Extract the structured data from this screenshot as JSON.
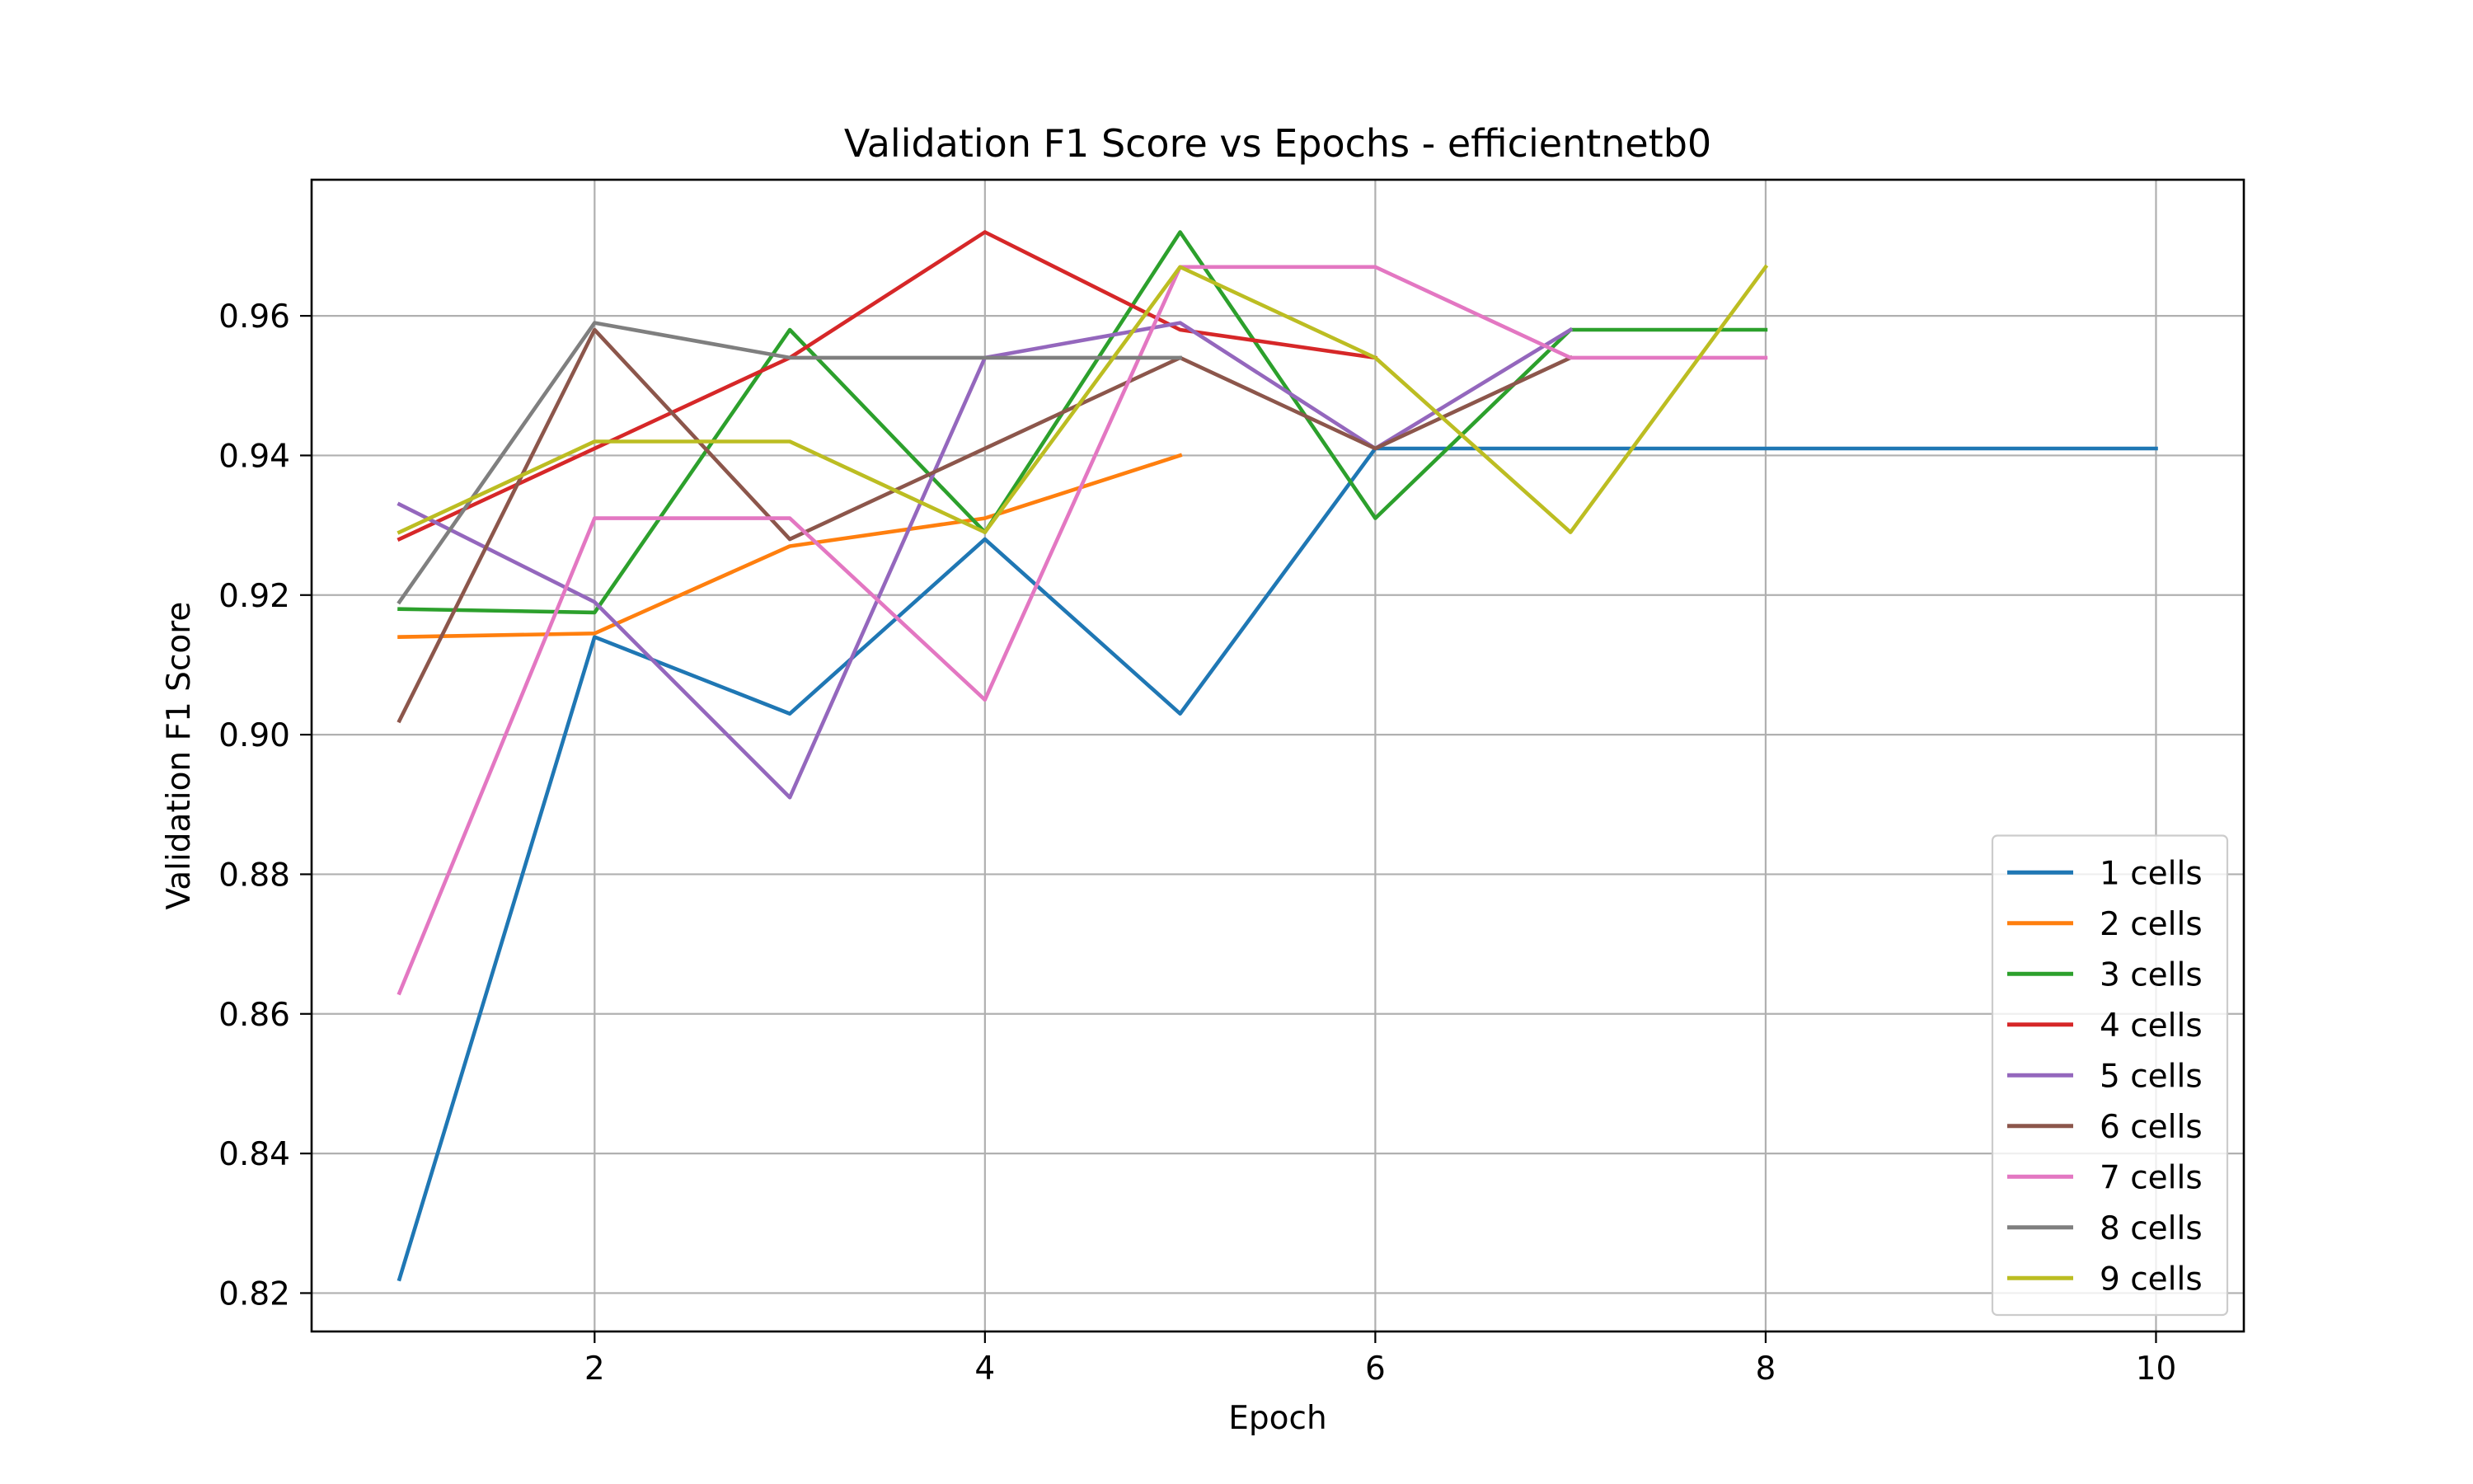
{
  "chart_data": {
    "type": "line",
    "title": "Validation F1 Score vs Epochs - efficientnetb0",
    "xlabel": "Epoch",
    "ylabel": "Validation F1 Score",
    "xlim": [
      0.55,
      10.45
    ],
    "ylim": [
      0.8145,
      0.9795
    ],
    "xticks": [
      2,
      4,
      6,
      8,
      10
    ],
    "yticks": [
      0.82,
      0.84,
      0.86,
      0.88,
      0.9,
      0.92,
      0.94,
      0.96
    ],
    "xtick_labels": [
      "2",
      "4",
      "6",
      "8",
      "10"
    ],
    "ytick_labels": [
      "0.82",
      "0.84",
      "0.86",
      "0.88",
      "0.90",
      "0.92",
      "0.94",
      "0.96"
    ],
    "grid": true,
    "legend_position": "lower right",
    "series": [
      {
        "name": "1 cells",
        "color": "#1f77b4",
        "x": [
          1,
          2,
          3,
          4,
          5,
          6,
          7,
          8,
          9,
          10
        ],
        "y": [
          0.822,
          0.914,
          0.903,
          0.928,
          0.903,
          0.941,
          0.941,
          0.941,
          0.941,
          0.941
        ]
      },
      {
        "name": "2 cells",
        "color": "#ff7f0e",
        "x": [
          1,
          2,
          3,
          4,
          5
        ],
        "y": [
          0.914,
          0.9145,
          0.927,
          0.931,
          0.94
        ]
      },
      {
        "name": "3 cells",
        "color": "#2ca02c",
        "x": [
          1,
          2,
          3,
          4,
          5,
          6,
          7,
          8
        ],
        "y": [
          0.918,
          0.9175,
          0.958,
          0.929,
          0.972,
          0.931,
          0.958,
          0.958
        ]
      },
      {
        "name": "4 cells",
        "color": "#d62728",
        "x": [
          1,
          2,
          3,
          4,
          5,
          6
        ],
        "y": [
          0.928,
          0.941,
          0.954,
          0.972,
          0.958,
          0.954
        ]
      },
      {
        "name": "5 cells",
        "color": "#9467bd",
        "x": [
          1,
          2,
          3,
          4,
          5,
          6,
          7
        ],
        "y": [
          0.933,
          0.919,
          0.891,
          0.954,
          0.959,
          0.941,
          0.958
        ]
      },
      {
        "name": "6 cells",
        "color": "#8c564b",
        "x": [
          1,
          2,
          3,
          4,
          5,
          6,
          7
        ],
        "y": [
          0.902,
          0.958,
          0.928,
          0.941,
          0.954,
          0.941,
          0.954
        ]
      },
      {
        "name": "7 cells",
        "color": "#e377c2",
        "x": [
          1,
          2,
          3,
          4,
          5,
          6,
          7,
          8
        ],
        "y": [
          0.863,
          0.931,
          0.931,
          0.905,
          0.967,
          0.967,
          0.954,
          0.954
        ]
      },
      {
        "name": "8 cells",
        "color": "#7f7f7f",
        "x": [
          1,
          2,
          3,
          4,
          5
        ],
        "y": [
          0.919,
          0.959,
          0.954,
          0.954,
          0.954
        ]
      },
      {
        "name": "9 cells",
        "color": "#bcbd22",
        "x": [
          1,
          2,
          3,
          4,
          5,
          6,
          7,
          8
        ],
        "y": [
          0.929,
          0.942,
          0.942,
          0.929,
          0.967,
          0.954,
          0.929,
          0.967
        ]
      }
    ]
  }
}
